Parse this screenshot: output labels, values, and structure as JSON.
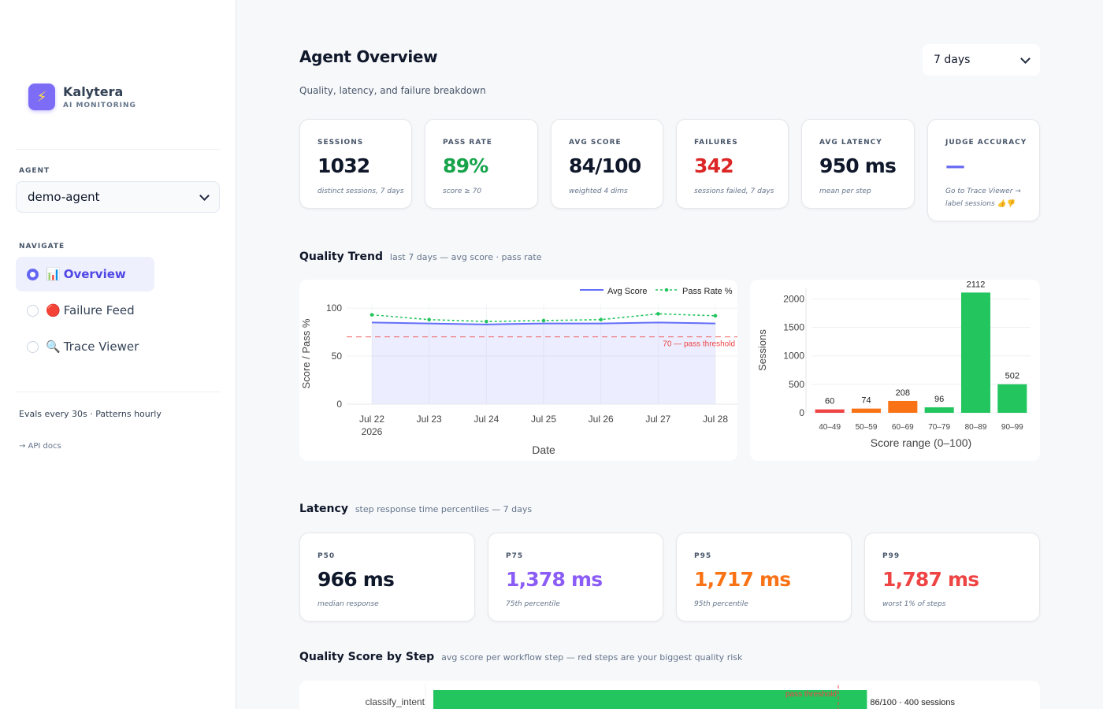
{
  "brand": {
    "name": "Kalytera",
    "subtitle": "AI MONITORING",
    "logo_icon": "lightning-icon"
  },
  "sidebar": {
    "agent_label": "AGENT",
    "agent_value": "demo-agent",
    "navigate_label": "NAVIGATE",
    "nav": [
      {
        "label": "Overview",
        "emoji": "📊",
        "active": true
      },
      {
        "label": "Failure Feed",
        "emoji": "🔴",
        "active": false
      },
      {
        "label": "Trace Viewer",
        "emoji": "🔍",
        "active": false
      }
    ],
    "note": "Evals every 30s · Patterns hourly",
    "api_link": "→ API docs"
  },
  "header": {
    "title": "Agent Overview",
    "subtitle": "Quality, latency, and failure breakdown",
    "range": "7 days"
  },
  "kpis": [
    {
      "label": "SESSIONS",
      "value": "1032",
      "sub": "distinct sessions, 7 days",
      "color": "#0f172a"
    },
    {
      "label": "PASS RATE",
      "value": "89%",
      "sub": "score ≥ 70",
      "color": "#16a34a"
    },
    {
      "label": "AVG SCORE",
      "value": "84/100",
      "sub": "weighted 4 dims",
      "color": "#0f172a"
    },
    {
      "label": "FAILURES",
      "value": "342",
      "sub": "sessions failed, 7 days",
      "color": "#dc2626"
    },
    {
      "label": "AVG LATENCY",
      "value": "950 ms",
      "sub": "mean per step",
      "color": "#0f172a"
    },
    {
      "label": "JUDGE ACCURACY",
      "value": "—",
      "sub": "Go to Trace Viewer → label sessions 👍👎",
      "color": "#6366f1"
    }
  ],
  "quality_trend": {
    "title": "Quality Trend",
    "subtitle": "last 7 days — avg score · pass rate"
  },
  "latency": {
    "title": "Latency",
    "subtitle": "step response time percentiles — 7 days",
    "cards": [
      {
        "label": "P50",
        "value": "966 ms",
        "sub": "median response",
        "color": "#0f172a"
      },
      {
        "label": "P75",
        "value": "1,378 ms",
        "sub": "75th percentile",
        "color": "#8b5cf6"
      },
      {
        "label": "P95",
        "value": "1,717 ms",
        "sub": "95th percentile",
        "color": "#f97316"
      },
      {
        "label": "P99",
        "value": "1,787 ms",
        "sub": "worst 1% of steps",
        "color": "#ef4444"
      }
    ]
  },
  "step_quality": {
    "title": "Quality Score by Step",
    "subtitle": "avg score per workflow step — red steps are your biggest quality risk"
  },
  "chart_data": [
    {
      "type": "line",
      "x": [
        "Jul 22",
        "Jul 23",
        "Jul 24",
        "Jul 25",
        "Jul 26",
        "Jul 27",
        "Jul 28"
      ],
      "x_year_label": "2026",
      "series": [
        {
          "name": "Avg Score",
          "values": [
            85,
            84,
            83,
            84,
            84,
            85,
            84
          ],
          "color": "#636efa",
          "fill": true
        },
        {
          "name": "Pass Rate %",
          "values": [
            93,
            88,
            86,
            87,
            88,
            94,
            92
          ],
          "color": "#22c55e",
          "dash": true
        }
      ],
      "threshold": {
        "value": 70,
        "label": "70 — pass threshold",
        "color": "#ef4444"
      },
      "xlabel": "Date",
      "ylabel": "Score / Pass %",
      "yticks": [
        0,
        50,
        100
      ],
      "ylim": [
        0,
        105
      ],
      "legend": "top-right"
    },
    {
      "type": "bar",
      "categories": [
        "40–49",
        "50–59",
        "60–69",
        "70–79",
        "80–89",
        "90–99"
      ],
      "values": [
        60,
        74,
        208,
        96,
        2112,
        502
      ],
      "colors": [
        "#ef4444",
        "#f97316",
        "#f97316",
        "#22c55e",
        "#22c55e",
        "#22c55e"
      ],
      "xlabel": "Score range (0–100)",
      "ylabel": "Sessions",
      "yticks": [
        0,
        500,
        1000,
        1500,
        2000
      ],
      "ylim": [
        0,
        2200
      ]
    },
    {
      "type": "bar",
      "orientation": "horizontal",
      "categories": [
        "classify_intent"
      ],
      "values": [
        86
      ],
      "value_labels": [
        "86/100 · 400 sessions"
      ],
      "colors": [
        "#22c55e"
      ],
      "threshold": {
        "value": 70,
        "label": "pass threshold",
        "color": "#ef4444"
      },
      "xlim": [
        0,
        100
      ]
    }
  ]
}
